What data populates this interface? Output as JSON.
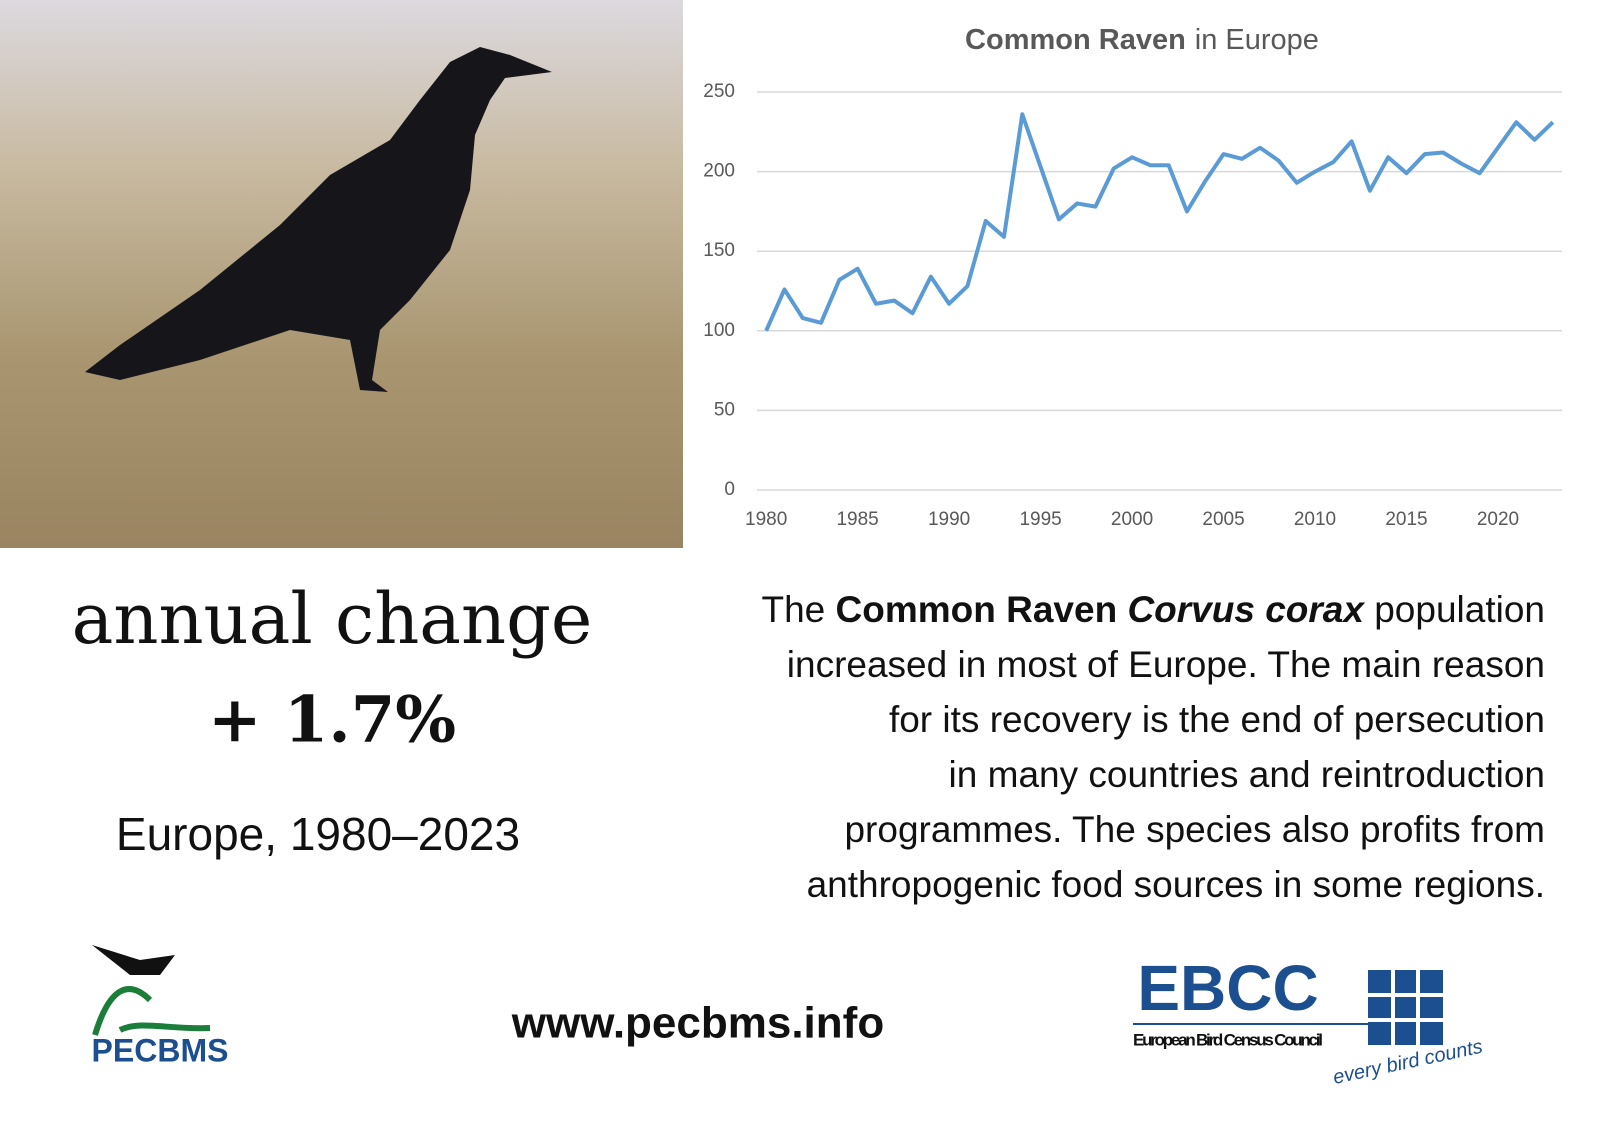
{
  "chart_data": {
    "type": "line",
    "title_parts": [
      {
        "text": "Common Raven",
        "style": "bold"
      },
      {
        "text": "in Europe"
      }
    ],
    "x": [
      1980,
      1981,
      1982,
      1983,
      1984,
      1985,
      1986,
      1987,
      1988,
      1989,
      1990,
      1991,
      1992,
      1993,
      1994,
      1995,
      1996,
      1997,
      1998,
      1999,
      2000,
      2001,
      2002,
      2003,
      2004,
      2005,
      2006,
      2007,
      2008,
      2009,
      2010,
      2011,
      2012,
      2013,
      2014,
      2015,
      2016,
      2017,
      2018,
      2019,
      2020,
      2021,
      2022,
      2023
    ],
    "values": [
      100,
      126,
      108,
      105,
      132,
      139,
      117,
      119,
      111,
      134,
      117,
      128,
      169,
      159,
      236,
      203,
      170,
      180,
      178,
      202,
      209,
      204,
      204,
      175,
      194,
      211,
      208,
      215,
      207,
      193,
      200,
      206,
      219,
      188,
      209,
      199,
      211,
      212,
      205,
      199,
      215,
      231,
      220,
      231
    ],
    "color": "#5b9bd5",
    "xlim": [
      1979.5,
      2023.5
    ],
    "xticks": [
      1980,
      1985,
      1990,
      1995,
      2000,
      2005,
      2010,
      2015,
      2020
    ],
    "ylim": [
      0,
      250
    ],
    "yticks": [
      0,
      50,
      100,
      150,
      200,
      250
    ],
    "grid": true
  },
  "summary": {
    "label": "annual change",
    "value": "+ 1.7%",
    "region": "Europe, 1980–2023"
  },
  "body": {
    "lines": [
      [
        {
          "text": "The "
        },
        {
          "text": "Common Raven ",
          "style": "bold"
        },
        {
          "text": "Corvus corax",
          "style": "bold-italic"
        },
        {
          "text": " population"
        }
      ],
      [
        {
          "text": "increased in most of Europe. The main reason"
        }
      ],
      [
        {
          "text": "for its recovery is the end of persecution"
        }
      ],
      [
        {
          "text": "in many countries and reintroduction"
        }
      ],
      [
        {
          "text": "programmes. The species also profits from"
        }
      ],
      [
        {
          "text": "anthropogenic food sources in some regions."
        }
      ]
    ]
  },
  "footer": {
    "website": "www.pecbms.info",
    "logo_left": "PECBMS",
    "logo_right": {
      "name": "EBCC",
      "full": "European Bird Census Council",
      "motto": "every bird counts"
    }
  }
}
